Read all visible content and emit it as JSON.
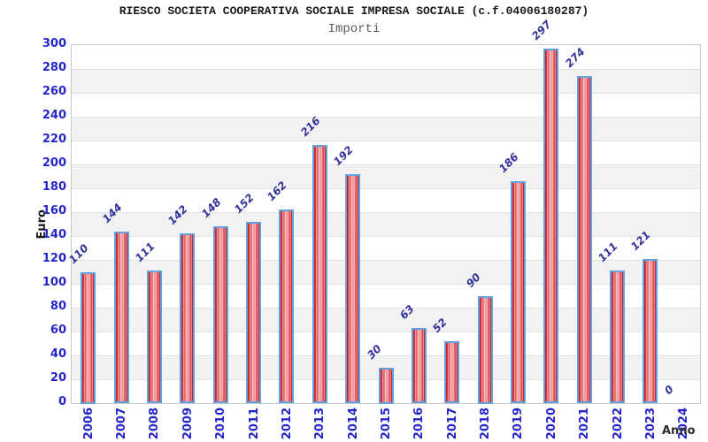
{
  "chart_data": {
    "type": "bar",
    "title": "RIESCO SOCIETA COOPERATIVA SOCIALE IMPRESA SOCIALE (c.f.04006180287)",
    "subtitle": "Importi",
    "xlabel": "Anno",
    "ylabel": "Euro",
    "categories": [
      "2006",
      "2007",
      "2008",
      "2009",
      "2010",
      "2011",
      "2012",
      "2013",
      "2014",
      "2015",
      "2016",
      "2017",
      "2018",
      "2019",
      "2020",
      "2021",
      "2022",
      "2023",
      "2024"
    ],
    "values": [
      110,
      144,
      111,
      142,
      148,
      152,
      162,
      216,
      192,
      30,
      63,
      52,
      90,
      186,
      297,
      274,
      111,
      121,
      0
    ],
    "ylim": [
      0,
      300
    ],
    "ytick_step": 20,
    "grid": "horizontal",
    "legend": "none",
    "value_labels_rotation_deg": -45,
    "xtick_rotation_deg": -90,
    "colors": {
      "bar_fill_dark": "#bf1722",
      "bar_fill_mid": "#e04a52",
      "bar_fill_light": "#f7abab",
      "bar_border": "#64a0dc",
      "tick_label": "#2424cc",
      "value_label": "#32329b",
      "band": "#f2f2f2",
      "gridline": "#e2e2e2",
      "plot_border": "#c9c9c9",
      "title_color": "#1a1a1a",
      "subtitle_color": "#5a5a5a"
    }
  }
}
